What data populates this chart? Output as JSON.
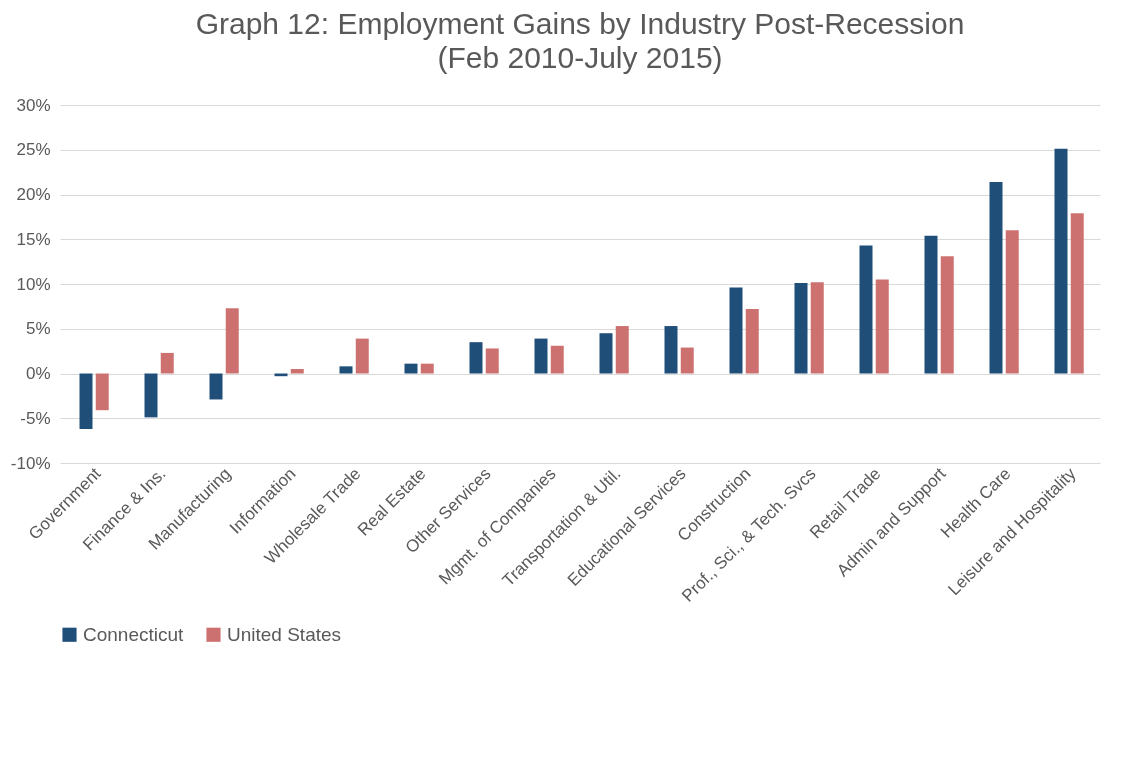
{
  "chart_data": {
    "type": "bar",
    "title": "Graph 12: Employment Gains by Industry Post-Recession",
    "subtitle": "(Feb 2010-July 2015)",
    "categories": [
      "Government",
      "Finance & Ins.",
      "Manufacturing",
      "Information",
      "Wholesale Trade",
      "Real Estate",
      "Other Services",
      "Mgmt. of Companies",
      "Transportation & Util.",
      "Educational Services",
      "Construction",
      "Prof., Sci., & Tech. Svcs",
      "Retail Trade",
      "Admin and Support",
      "Health Care",
      "Leisure and Hospitality"
    ],
    "series": [
      {
        "name": "Connecticut",
        "color": "#1f4e79",
        "values": [
          -6.2,
          -4.9,
          -2.9,
          -0.3,
          0.8,
          1.1,
          3.5,
          3.9,
          4.5,
          5.3,
          9.6,
          10.1,
          14.3,
          15.4,
          21.4,
          25.1
        ]
      },
      {
        "name": "United States",
        "color": "#cd7070",
        "values": [
          -4.1,
          2.3,
          7.3,
          0.5,
          3.9,
          1.1,
          2.8,
          3.1,
          5.3,
          2.9,
          7.2,
          10.2,
          10.5,
          13.1,
          16.0,
          17.9
        ]
      }
    ],
    "ylim": [
      -10,
      30
    ],
    "yticks": [
      {
        "value": -10,
        "label": "-10%"
      },
      {
        "value": -5,
        "label": "-5%"
      },
      {
        "value": 0,
        "label": "0%"
      },
      {
        "value": 5,
        "label": "5%"
      },
      {
        "value": 10,
        "label": "10%"
      },
      {
        "value": 15,
        "label": "15%"
      },
      {
        "value": 20,
        "label": "20%"
      },
      {
        "value": 25,
        "label": "25%"
      },
      {
        "value": 30,
        "label": "30%"
      }
    ],
    "grid": "y",
    "legend": "bottom"
  }
}
